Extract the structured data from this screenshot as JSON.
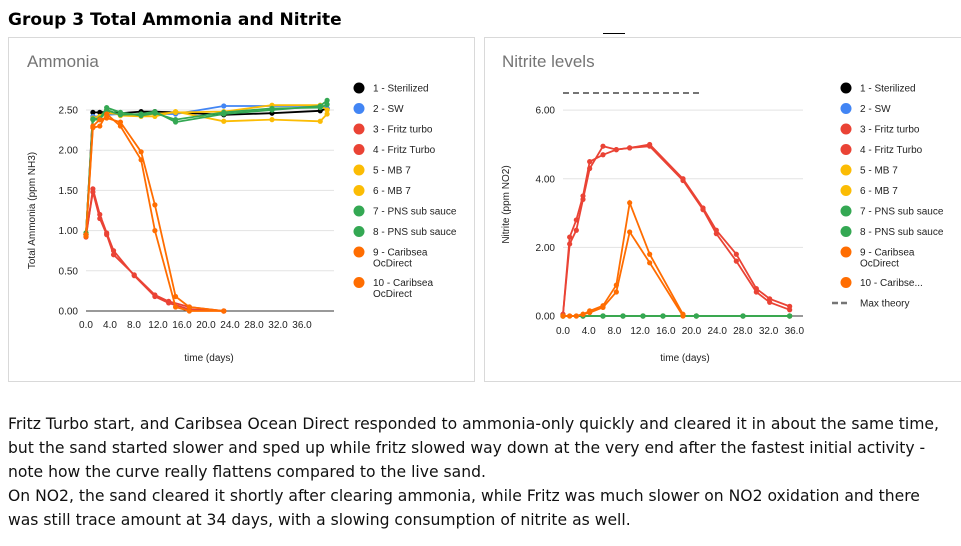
{
  "page_title": "Group 3 Total Ammonia and Nitrite",
  "paragraphs": [
    "Fritz Turbo start, and Caribsea Ocean Direct responded to ammonia-only quickly and cleared it in about the same time, but the sand started slower and sped up while fritz slowed way down at the very end after the fastest initial activity - note how the curve really flattens compared to the live sand.",
    "On NO2, the sand cleared it shortly after clearing ammonia, while Fritz was much slower on NO2 oxidation and there was still trace amount at 34 days, with a slowing consumption of nitrite as well."
  ],
  "colors": {
    "black": "#000000",
    "blue": "#4285f4",
    "red": "#ea4335",
    "yellow": "#fbbc04",
    "green": "#34a853",
    "orange": "#ff6d01",
    "theory": "#757575",
    "grid": "#e3e3e3"
  },
  "chart_data": [
    {
      "type": "line",
      "title": "Ammonia",
      "xlabel": "time (days)",
      "ylabel": "Total Ammonia (ppm NH3)",
      "xlim": [
        0,
        36
      ],
      "ylim": [
        0,
        2.5
      ],
      "xticks": [
        "0.0",
        "4.0",
        "8.0",
        "12.0",
        "16.0",
        "20.0",
        "24.0",
        "28.0",
        "32.0",
        "36.0"
      ],
      "yticks": [
        "0.00",
        "0.50",
        "1.00",
        "1.50",
        "2.00",
        "2.50"
      ],
      "grid": true,
      "legend_position": "right",
      "series": [
        {
          "name": "1 - Sterilized",
          "color": "black",
          "x": [
            0,
            1,
            2,
            3,
            5,
            8,
            10,
            13,
            20,
            27,
            34,
            35
          ],
          "y": [
            0.95,
            2.47,
            2.47,
            2.48,
            2.46,
            2.48,
            2.48,
            2.47,
            2.44,
            2.46,
            2.49,
            2.52
          ]
        },
        {
          "name": "2 - SW",
          "color": "blue",
          "x": [
            0,
            1,
            2,
            3,
            5,
            8,
            10,
            13,
            20,
            27,
            34,
            35
          ],
          "y": [
            0.95,
            2.42,
            2.42,
            2.44,
            2.45,
            2.44,
            2.45,
            2.45,
            2.55,
            2.55,
            2.55,
            2.52
          ]
        },
        {
          "name": "3 - Fritz turbo",
          "color": "red",
          "x": [
            0,
            1,
            2,
            3,
            4,
            7,
            10,
            12,
            15,
            20
          ],
          "y": [
            0.92,
            1.52,
            1.2,
            0.97,
            0.75,
            0.44,
            0.18,
            0.1,
            0.02,
            0.0
          ]
        },
        {
          "name": "4 - Fritz Turbo",
          "color": "red",
          "x": [
            0,
            1,
            2,
            3,
            4,
            7,
            10,
            12,
            15,
            20
          ],
          "y": [
            0.95,
            1.48,
            1.15,
            0.95,
            0.7,
            0.45,
            0.2,
            0.12,
            0.05,
            0.0
          ]
        },
        {
          "name": "5 - MB 7",
          "color": "yellow",
          "x": [
            0,
            1,
            2,
            3,
            5,
            8,
            10,
            13,
            20,
            27,
            34,
            35
          ],
          "y": [
            0.97,
            2.4,
            2.42,
            2.5,
            2.43,
            2.42,
            2.42,
            2.48,
            2.36,
            2.38,
            2.36,
            2.45
          ]
        },
        {
          "name": "6 - MB 7",
          "color": "yellow",
          "x": [
            0,
            1,
            2,
            3,
            5,
            8,
            10,
            13,
            20,
            27,
            34,
            35
          ],
          "y": [
            0.97,
            2.38,
            2.4,
            2.46,
            2.45,
            2.44,
            2.45,
            2.47,
            2.48,
            2.56,
            2.56,
            2.5
          ]
        },
        {
          "name": "7 - PNS sub sauce",
          "color": "green",
          "x": [
            0,
            1,
            2,
            3,
            5,
            8,
            10,
            13,
            20,
            27,
            34,
            35
          ],
          "y": [
            0.95,
            2.38,
            2.38,
            2.5,
            2.44,
            2.45,
            2.48,
            2.35,
            2.45,
            2.5,
            2.55,
            2.62
          ]
        },
        {
          "name": "8 - PNS sub sauce",
          "color": "green",
          "x": [
            0,
            1,
            2,
            3,
            5,
            8,
            10,
            13,
            20,
            27,
            34,
            35
          ],
          "y": [
            0.97,
            2.39,
            2.39,
            2.53,
            2.47,
            2.43,
            2.46,
            2.38,
            2.47,
            2.52,
            2.53,
            2.57
          ]
        },
        {
          "name": "9 - Caribsea OcDirect",
          "color": "orange",
          "x": [
            0,
            1,
            2,
            3,
            5,
            8,
            10,
            13,
            15,
            20
          ],
          "y": [
            0.93,
            2.28,
            2.3,
            2.45,
            2.3,
            1.88,
            1.0,
            0.05,
            0.0,
            0.0
          ]
        },
        {
          "name": "10 - Caribsea OcDirect",
          "color": "orange",
          "x": [
            0,
            1,
            2,
            3,
            5,
            8,
            10,
            13,
            15,
            20
          ],
          "y": [
            0.95,
            2.3,
            2.38,
            2.4,
            2.35,
            1.98,
            1.32,
            0.18,
            0.05,
            0.0
          ]
        }
      ]
    },
    {
      "type": "line",
      "title": "Nitrite levels",
      "xlabel": "time (days)",
      "ylabel": "Nitrite (ppm NO2)",
      "xlim": [
        0,
        36
      ],
      "ylim": [
        0,
        6.5
      ],
      "xticks": [
        "0.0",
        "4.0",
        "8.0",
        "12.0",
        "16.0",
        "20.0",
        "24.0",
        "28.0",
        "32.0",
        "36.0"
      ],
      "yticks": [
        "0.00",
        "2.00",
        "4.00",
        "6.00"
      ],
      "grid": true,
      "legend_position": "right",
      "series": [
        {
          "name": "1 - Sterilized",
          "color": "black",
          "x": [
            0,
            3,
            6,
            9,
            12,
            15,
            20,
            27,
            34
          ],
          "y": [
            0,
            0,
            0,
            0,
            0,
            0,
            0,
            0,
            0
          ]
        },
        {
          "name": "2 - SW",
          "color": "blue",
          "x": [
            0,
            3,
            6,
            9,
            12,
            15,
            20,
            27,
            34
          ],
          "y": [
            0,
            0,
            0,
            0,
            0,
            0,
            0,
            0,
            0
          ]
        },
        {
          "name": "3 - Fritz turbo",
          "color": "red",
          "x": [
            0,
            1,
            2,
            3,
            4,
            6,
            8,
            10,
            13,
            18,
            21,
            23,
            26,
            29,
            31,
            34
          ],
          "y": [
            0.05,
            2.1,
            2.5,
            3.4,
            4.3,
            4.95,
            4.85,
            4.9,
            4.95,
            3.95,
            3.1,
            2.4,
            1.6,
            0.7,
            0.4,
            0.18
          ]
        },
        {
          "name": "4 - Fritz Turbo",
          "color": "red",
          "x": [
            0,
            1,
            2,
            3,
            4,
            6,
            8,
            10,
            13,
            18,
            21,
            23,
            26,
            29,
            31,
            34
          ],
          "y": [
            0.05,
            2.3,
            2.8,
            3.5,
            4.5,
            4.7,
            4.85,
            4.9,
            5.0,
            4.0,
            3.15,
            2.5,
            1.8,
            0.8,
            0.5,
            0.28
          ]
        },
        {
          "name": "5 - MB 7",
          "color": "yellow",
          "x": [
            0,
            3,
            6,
            9,
            12,
            15,
            20,
            27,
            34
          ],
          "y": [
            0,
            0,
            0,
            0,
            0,
            0,
            0,
            0,
            0
          ]
        },
        {
          "name": "6 - MB 7",
          "color": "yellow",
          "x": [
            0,
            3,
            6,
            9,
            12,
            15,
            20,
            27,
            34
          ],
          "y": [
            0,
            0,
            0,
            0,
            0,
            0,
            0,
            0,
            0
          ]
        },
        {
          "name": "7 - PNS sub sauce",
          "color": "green",
          "x": [
            0,
            3,
            6,
            9,
            12,
            15,
            20,
            27,
            34
          ],
          "y": [
            0,
            0,
            0,
            0,
            0,
            0,
            0,
            0,
            0
          ]
        },
        {
          "name": "8 - PNS sub sauce",
          "color": "green",
          "x": [
            0,
            3,
            6,
            9,
            12,
            15,
            20,
            27,
            34
          ],
          "y": [
            0,
            0,
            0,
            0,
            0,
            0,
            0,
            0,
            0
          ]
        },
        {
          "name": "9 - Caribsea OcDirect",
          "color": "orange",
          "x": [
            0,
            1,
            2,
            3,
            4,
            6,
            8,
            10,
            13,
            18
          ],
          "y": [
            0,
            0,
            0,
            0.05,
            0.1,
            0.25,
            0.7,
            2.45,
            1.55,
            0.0
          ]
        },
        {
          "name": "10 - Caribse...",
          "color": "orange",
          "x": [
            0,
            1,
            2,
            3,
            4,
            6,
            8,
            10,
            13,
            18
          ],
          "y": [
            0,
            0,
            0,
            0.05,
            0.15,
            0.3,
            0.9,
            3.3,
            1.8,
            0.05
          ]
        },
        {
          "name": "Max theory",
          "color": "theory",
          "dashed": true,
          "x": [
            0,
            21
          ],
          "y": [
            6.5,
            6.5
          ]
        }
      ]
    }
  ]
}
